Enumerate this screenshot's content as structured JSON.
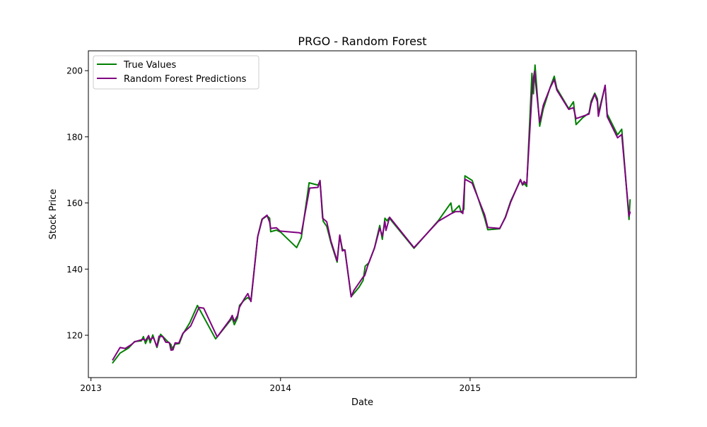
{
  "chart_data": {
    "type": "line",
    "title": "PRGO - Random Forest",
    "xlabel": "Date",
    "ylabel": "Stock Price",
    "xlim": [
      "2012-12-27",
      "2015-11-17"
    ],
    "ylim": [
      107.2,
      206.0
    ],
    "x_ticks": [
      {
        "date": "2013-01-01",
        "label": "2013"
      },
      {
        "date": "2014-01-01",
        "label": "2014"
      },
      {
        "date": "2015-01-01",
        "label": "2015"
      }
    ],
    "y_ticks": [
      120,
      140,
      160,
      180,
      200
    ],
    "legend": {
      "position": "top-left"
    },
    "grid": false,
    "series": [
      {
        "name": "True Values",
        "color": "#008000",
        "points": [
          [
            "2013-02-12",
            111.7
          ],
          [
            "2013-02-26",
            114.6
          ],
          [
            "2013-03-14",
            116.1
          ],
          [
            "2013-03-26",
            118.1
          ],
          [
            "2013-04-08",
            118.3
          ],
          [
            "2013-04-12",
            119.6
          ],
          [
            "2013-04-16",
            117.5
          ],
          [
            "2013-04-22",
            119.6
          ],
          [
            "2013-04-25",
            117.7
          ],
          [
            "2013-04-30",
            120.1
          ],
          [
            "2013-05-08",
            116.3
          ],
          [
            "2013-05-15",
            120.3
          ],
          [
            "2013-05-22",
            119.2
          ],
          [
            "2013-05-28",
            118.2
          ],
          [
            "2013-06-04",
            117.2
          ],
          [
            "2013-06-06",
            115.9
          ],
          [
            "2013-06-12",
            117.3
          ],
          [
            "2013-06-20",
            117.5
          ],
          [
            "2013-06-27",
            120.4
          ],
          [
            "2013-07-10",
            123.7
          ],
          [
            "2013-07-25",
            129.0
          ],
          [
            "2013-08-29",
            118.9
          ],
          [
            "2013-09-30",
            125.2
          ],
          [
            "2013-10-04",
            123.2
          ],
          [
            "2013-10-10",
            125.2
          ],
          [
            "2013-10-14",
            129.0
          ],
          [
            "2013-10-23",
            130.6
          ],
          [
            "2013-10-30",
            131.4
          ],
          [
            "2013-11-05",
            130.5
          ],
          [
            "2013-11-18",
            149.8
          ],
          [
            "2013-11-26",
            155.0
          ],
          [
            "2013-12-06",
            156.1
          ],
          [
            "2013-12-11",
            155.4
          ],
          [
            "2013-12-13",
            151.3
          ],
          [
            "2013-12-24",
            151.8
          ],
          [
            "2014-01-01",
            151.2
          ],
          [
            "2014-02-01",
            146.5
          ],
          [
            "2014-02-10",
            149.5
          ],
          [
            "2014-02-25",
            166.1
          ],
          [
            "2014-03-14",
            165.4
          ],
          [
            "2014-03-18",
            166.6
          ],
          [
            "2014-03-24",
            154.5
          ],
          [
            "2014-03-31",
            152.9
          ],
          [
            "2014-04-08",
            148.0
          ],
          [
            "2014-04-20",
            142.1
          ],
          [
            "2014-04-25",
            150.1
          ],
          [
            "2014-04-30",
            146.1
          ],
          [
            "2014-05-05",
            145.6
          ],
          [
            "2014-05-17",
            131.7
          ],
          [
            "2014-06-01",
            134.5
          ],
          [
            "2014-06-09",
            136.6
          ],
          [
            "2014-06-13",
            140.9
          ],
          [
            "2014-06-20",
            141.9
          ],
          [
            "2014-07-01",
            146.5
          ],
          [
            "2014-07-11",
            153.2
          ],
          [
            "2014-07-16",
            149.0
          ],
          [
            "2014-07-21",
            155.4
          ],
          [
            "2014-07-25",
            154.6
          ],
          [
            "2014-07-29",
            155.5
          ],
          [
            "2014-09-15",
            146.3
          ],
          [
            "2014-11-01",
            154.7
          ],
          [
            "2014-11-25",
            160.0
          ],
          [
            "2014-11-28",
            157.1
          ],
          [
            "2014-12-11",
            159.2
          ],
          [
            "2014-12-15",
            157.1
          ],
          [
            "2014-12-20",
            158.1
          ],
          [
            "2014-12-22",
            168.2
          ],
          [
            "2015-01-05",
            166.8
          ],
          [
            "2015-01-29",
            155.4
          ],
          [
            "2015-02-04",
            151.9
          ],
          [
            "2015-02-27",
            152.2
          ],
          [
            "2015-03-10",
            155.8
          ],
          [
            "2015-03-20",
            160.5
          ],
          [
            "2015-04-05",
            165.9
          ],
          [
            "2015-04-08",
            167.0
          ],
          [
            "2015-04-12",
            165.4
          ],
          [
            "2015-04-15",
            165.9
          ],
          [
            "2015-04-20",
            165.0
          ],
          [
            "2015-04-30",
            199.2
          ],
          [
            "2015-05-03",
            193.0
          ],
          [
            "2015-05-06",
            201.7
          ],
          [
            "2015-05-15",
            183.2
          ],
          [
            "2015-05-22",
            188.5
          ],
          [
            "2015-06-04",
            194.9
          ],
          [
            "2015-06-12",
            198.3
          ],
          [
            "2015-06-17",
            194.6
          ],
          [
            "2015-07-10",
            188.5
          ],
          [
            "2015-07-19",
            190.6
          ],
          [
            "2015-07-24",
            183.7
          ],
          [
            "2015-08-06",
            185.8
          ],
          [
            "2015-08-18",
            187.2
          ],
          [
            "2015-08-22",
            190.8
          ],
          [
            "2015-08-29",
            193.2
          ],
          [
            "2015-09-03",
            191.5
          ],
          [
            "2015-09-05",
            187.2
          ],
          [
            "2015-09-18",
            195.4
          ],
          [
            "2015-09-22",
            186.9
          ],
          [
            "2015-10-12",
            180.6
          ],
          [
            "2015-10-20",
            182.3
          ],
          [
            "2015-11-03",
            155.0
          ],
          [
            "2015-11-05",
            160.9
          ]
        ]
      },
      {
        "name": "Random Forest Predictions",
        "color": "#800080",
        "points": [
          [
            "2013-02-12",
            112.6
          ],
          [
            "2013-02-26",
            116.3
          ],
          [
            "2013-03-08",
            116.0
          ],
          [
            "2013-03-20",
            117.2
          ],
          [
            "2013-03-26",
            118.0
          ],
          [
            "2013-04-05",
            118.5
          ],
          [
            "2013-04-12",
            118.8
          ],
          [
            "2013-04-16",
            118.4
          ],
          [
            "2013-04-22",
            119.9
          ],
          [
            "2013-04-25",
            118.6
          ],
          [
            "2013-05-01",
            119.4
          ],
          [
            "2013-05-08",
            116.6
          ],
          [
            "2013-05-12",
            119.7
          ],
          [
            "2013-05-19",
            119.6
          ],
          [
            "2013-05-25",
            117.9
          ],
          [
            "2013-06-01",
            117.8
          ],
          [
            "2013-06-04",
            115.5
          ],
          [
            "2013-06-08",
            115.6
          ],
          [
            "2013-06-12",
            117.7
          ],
          [
            "2013-06-19",
            117.6
          ],
          [
            "2013-06-27",
            120.6
          ],
          [
            "2013-07-12",
            122.8
          ],
          [
            "2013-07-28",
            128.4
          ],
          [
            "2013-08-06",
            128.2
          ],
          [
            "2013-09-01",
            119.5
          ],
          [
            "2013-09-26",
            124.8
          ],
          [
            "2013-09-30",
            126.0
          ],
          [
            "2013-10-04",
            124.2
          ],
          [
            "2013-10-10",
            125.9
          ],
          [
            "2013-10-14",
            128.5
          ],
          [
            "2013-10-24",
            131.2
          ],
          [
            "2013-10-30",
            132.6
          ],
          [
            "2013-11-05",
            130.2
          ],
          [
            "2013-11-18",
            149.8
          ],
          [
            "2013-11-27",
            155.2
          ],
          [
            "2013-12-06",
            156.3
          ],
          [
            "2013-12-11",
            154.2
          ],
          [
            "2013-12-13",
            152.3
          ],
          [
            "2013-12-24",
            152.5
          ],
          [
            "2013-12-31",
            151.5
          ],
          [
            "2014-02-06",
            151.0
          ],
          [
            "2014-02-10",
            150.7
          ],
          [
            "2014-02-26",
            164.5
          ],
          [
            "2014-03-14",
            164.7
          ],
          [
            "2014-03-18",
            166.8
          ],
          [
            "2014-03-23",
            155.4
          ],
          [
            "2014-03-31",
            154.3
          ],
          [
            "2014-04-08",
            148.5
          ],
          [
            "2014-04-20",
            142.5
          ],
          [
            "2014-04-25",
            150.3
          ],
          [
            "2014-04-30",
            145.5
          ],
          [
            "2014-05-05",
            145.8
          ],
          [
            "2014-05-17",
            131.6
          ],
          [
            "2014-05-22",
            133.5
          ],
          [
            "2014-06-09",
            137.6
          ],
          [
            "2014-06-12",
            138.0
          ],
          [
            "2014-06-18",
            141.1
          ],
          [
            "2014-07-01",
            146.4
          ],
          [
            "2014-07-11",
            152.4
          ],
          [
            "2014-07-16",
            150.0
          ],
          [
            "2014-07-21",
            154.4
          ],
          [
            "2014-07-23",
            151.7
          ],
          [
            "2014-07-30",
            155.7
          ],
          [
            "2014-09-15",
            146.5
          ],
          [
            "2014-11-01",
            154.5
          ],
          [
            "2014-11-25",
            156.7
          ],
          [
            "2014-12-04",
            157.4
          ],
          [
            "2014-12-15",
            157.4
          ],
          [
            "2014-12-18",
            156.8
          ],
          [
            "2014-12-22",
            167.2
          ],
          [
            "2015-01-05",
            166.0
          ],
          [
            "2015-01-29",
            156.4
          ],
          [
            "2015-02-04",
            152.6
          ],
          [
            "2015-02-27",
            152.3
          ],
          [
            "2015-03-10",
            155.6
          ],
          [
            "2015-03-20",
            160.2
          ],
          [
            "2015-04-08",
            167.1
          ],
          [
            "2015-04-12",
            165.5
          ],
          [
            "2015-04-15",
            166.5
          ],
          [
            "2015-04-20",
            165.7
          ],
          [
            "2015-05-01",
            195.4
          ],
          [
            "2015-05-05",
            199.8
          ],
          [
            "2015-05-15",
            184.4
          ],
          [
            "2015-05-22",
            189.6
          ],
          [
            "2015-06-04",
            194.8
          ],
          [
            "2015-06-12",
            197.3
          ],
          [
            "2015-06-17",
            194.1
          ],
          [
            "2015-07-10",
            188.3
          ],
          [
            "2015-07-19",
            188.8
          ],
          [
            "2015-07-24",
            185.5
          ],
          [
            "2015-08-18",
            186.9
          ],
          [
            "2015-08-22",
            190.1
          ],
          [
            "2015-08-29",
            192.9
          ],
          [
            "2015-09-03",
            190.6
          ],
          [
            "2015-09-05",
            186.2
          ],
          [
            "2015-09-18",
            195.6
          ],
          [
            "2015-09-22",
            186.1
          ],
          [
            "2015-10-12",
            179.7
          ],
          [
            "2015-10-20",
            180.7
          ],
          [
            "2015-11-03",
            156.0
          ],
          [
            "2015-11-05",
            157.2
          ]
        ]
      }
    ]
  }
}
